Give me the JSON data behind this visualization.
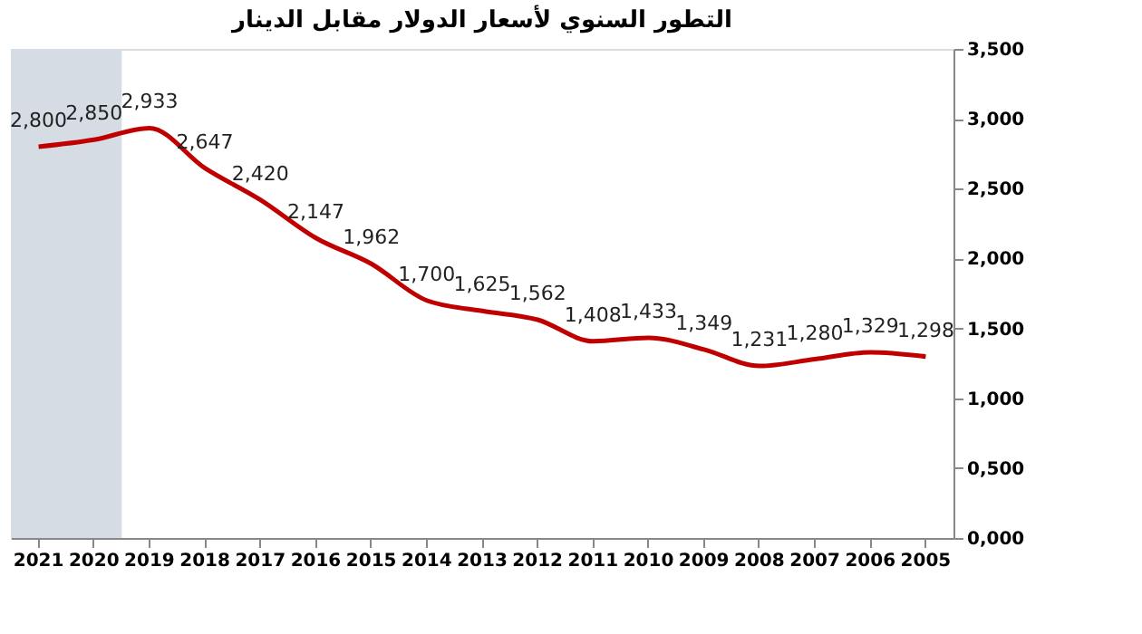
{
  "chart_data": {
    "type": "line",
    "title": "التطور السنوي لأسعار الدولار مقابل الدينار",
    "categories": [
      "2021",
      "2020",
      "2019",
      "2018",
      "2017",
      "2016",
      "2015",
      "2014",
      "2013",
      "2012",
      "2011",
      "2010",
      "2009",
      "2008",
      "2007",
      "2006",
      "2005"
    ],
    "series": [
      {
        "color": "#c00000",
        "values": [
          2.8,
          2.85,
          2.933,
          2.647,
          2.42,
          2.147,
          1.962,
          1.7,
          1.625,
          1.562,
          1.408,
          1.433,
          1.349,
          1.231,
          1.28,
          1.329,
          1.298
        ],
        "value_labels": [
          "2,800",
          "2,850",
          "2,933",
          "2,647",
          "2,420",
          "2,147",
          "1,962",
          "1,700",
          "1,625",
          "1,562",
          "1,408",
          "1,433",
          "1,349",
          "1,231",
          "1,280",
          "1,329",
          "1,298"
        ]
      }
    ],
    "ylim": [
      0,
      3.5
    ],
    "yticks": [
      {
        "value": 0,
        "label": "0,000"
      },
      {
        "value": 0.5,
        "label": "0,500"
      },
      {
        "value": 1,
        "label": "1,000"
      },
      {
        "value": 1.5,
        "label": "1,500"
      },
      {
        "value": 2,
        "label": "2,000"
      },
      {
        "value": 2.5,
        "label": "2,500"
      },
      {
        "value": 3,
        "label": "3,000"
      },
      {
        "value": 3.5,
        "label": "3,500"
      }
    ],
    "bands": [
      {
        "axis": "x",
        "from": "2021",
        "to": "2020",
        "color": "#d6dce4"
      }
    ],
    "grid": false,
    "legend": false,
    "marker": "none",
    "line_style": "solid"
  }
}
